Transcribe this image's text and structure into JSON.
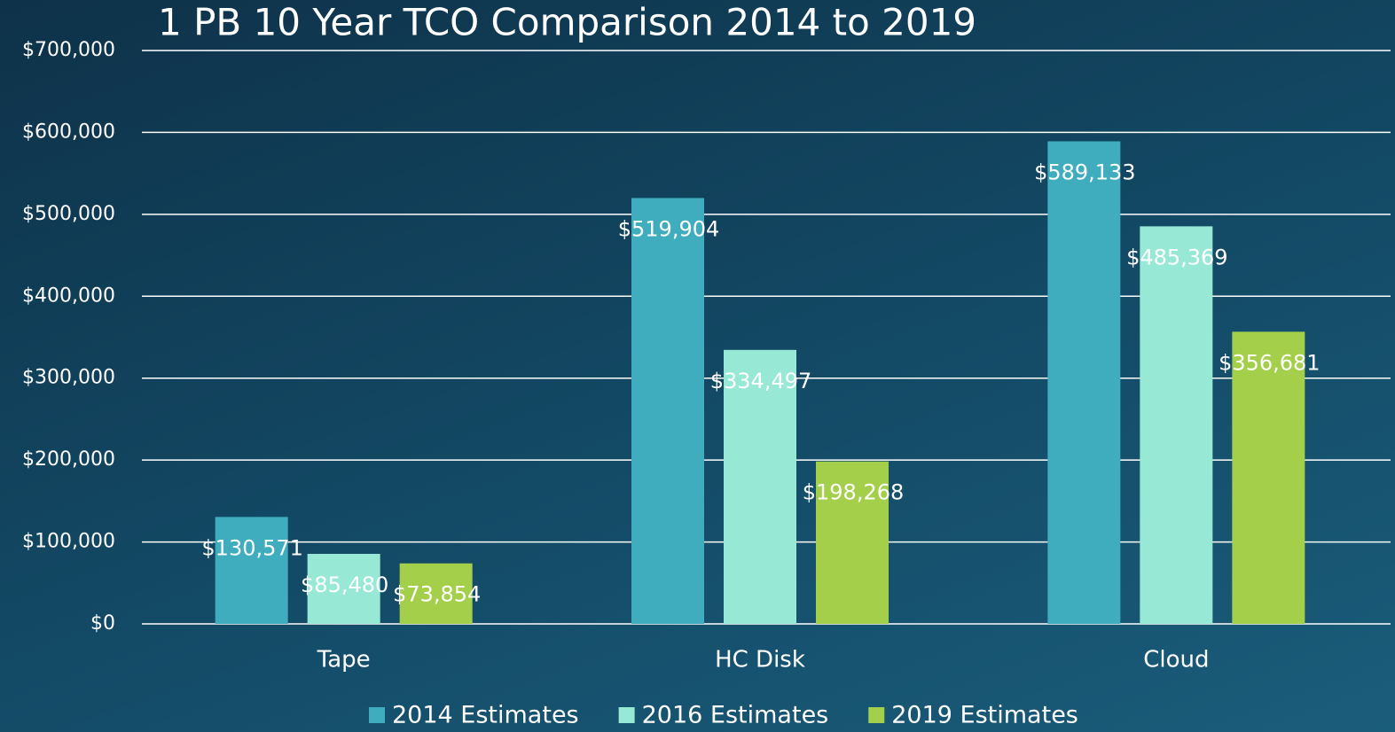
{
  "chart_data": {
    "type": "bar",
    "title": "1 PB 10 Year TCO Comparison 2014 to 2019",
    "categories": [
      "Tape",
      "HC Disk",
      "Cloud"
    ],
    "series": [
      {
        "name": "2014 Estimates",
        "color": "#3fadbd",
        "values": [
          130571,
          519904,
          589133
        ],
        "value_labels": [
          "$130,571",
          "$519,904",
          "$589,133"
        ]
      },
      {
        "name": "2016 Estimates",
        "color": "#98e8d6",
        "values": [
          85480,
          334497,
          485369
        ],
        "value_labels": [
          "$85,480",
          "$334,497",
          "$485,369"
        ]
      },
      {
        "name": "2019 Estimates",
        "color": "#a3cf4a",
        "values": [
          73854,
          198268,
          356681
        ],
        "value_labels": [
          "$73,854",
          "$198,268",
          "$356,681"
        ]
      }
    ],
    "ylim": [
      0,
      700000
    ],
    "yticks": [
      {
        "value": 0,
        "label": "$0"
      },
      {
        "value": 100000,
        "label": "$100,000"
      },
      {
        "value": 200000,
        "label": "$200,000"
      },
      {
        "value": 300000,
        "label": "$300,000"
      },
      {
        "value": 400000,
        "label": "$400,000"
      },
      {
        "value": 500000,
        "label": "$500,000"
      },
      {
        "value": 600000,
        "label": "$600,000"
      },
      {
        "value": 700000,
        "label": "$700,000"
      }
    ],
    "grid": true,
    "legend": "bottom"
  }
}
